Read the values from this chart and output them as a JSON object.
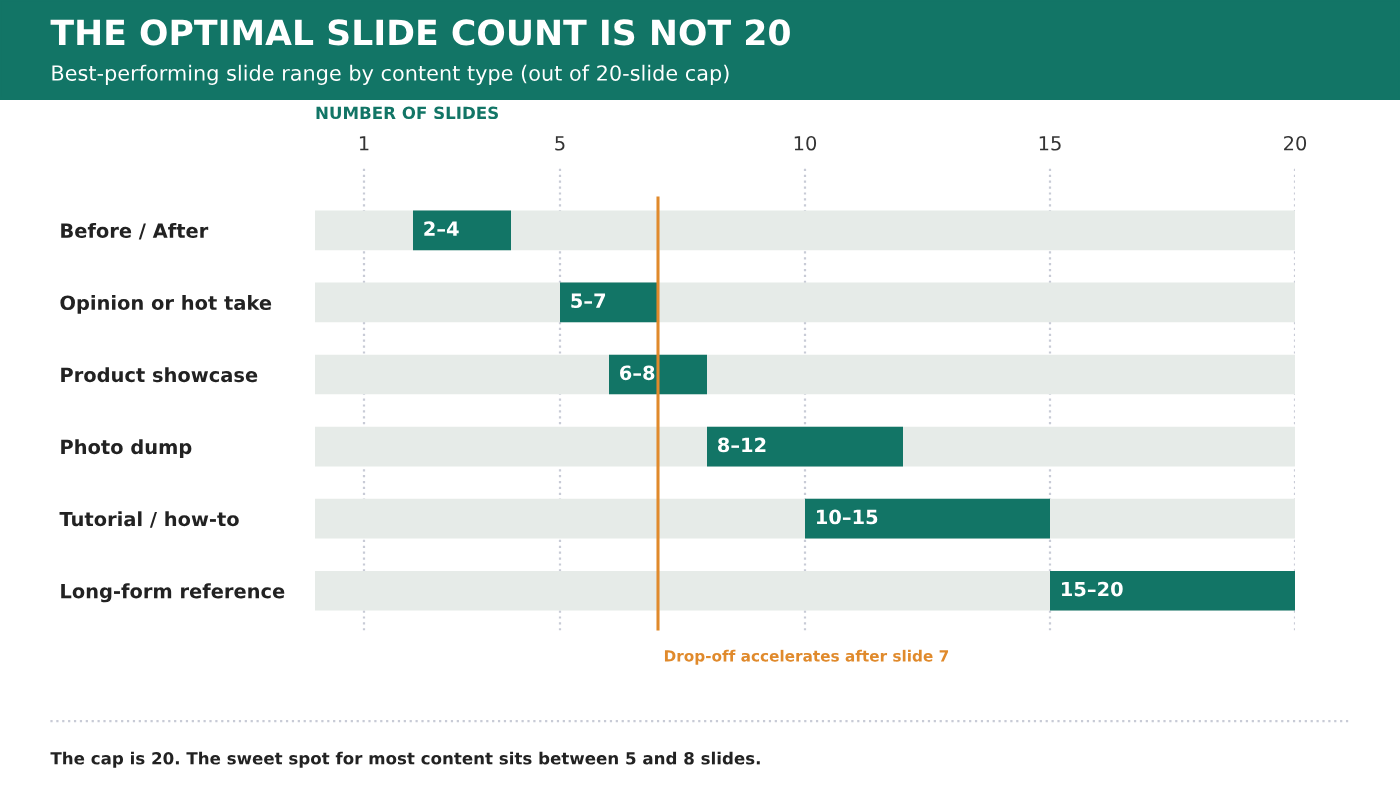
{
  "chart_data": {
    "type": "bar",
    "orientation": "horizontal",
    "title": "THE OPTIMAL SLIDE COUNT IS NOT 20",
    "subtitle": "Best-performing slide range by content type (out of 20-slide cap)",
    "xlabel": "NUMBER OF SLIDES",
    "categories": [
      "Before / After",
      "Opinion or hot take",
      "Product showcase",
      "Photo dump",
      "Tutorial / how-to",
      "Long-form reference"
    ],
    "series": [
      {
        "color": "#e6ebe8",
        "base": [
          0,
          0,
          0,
          0,
          0,
          0
        ],
        "values": [
          20,
          20,
          20,
          20,
          20,
          20
        ]
      },
      {
        "color": "#127566",
        "base": [
          2,
          5,
          6,
          8,
          10,
          15
        ],
        "values": [
          2,
          2,
          2,
          4,
          5,
          5
        ],
        "value_labels": [
          "2–4",
          "5–7",
          "6–8",
          "8–12",
          "10–15",
          "15–20"
        ]
      }
    ],
    "xlim": [
      0,
      20
    ],
    "xticks": [
      1,
      5,
      10,
      15,
      20
    ],
    "grid": "x",
    "ref_lines": [
      {
        "axis": "x",
        "value": 7,
        "label": "Drop-off accelerates after slide 7",
        "color": "#e08a2c"
      }
    ],
    "annotations": [
      "The cap is 20. The sweet spot for most content sits between 5 and 8 slides."
    ]
  }
}
